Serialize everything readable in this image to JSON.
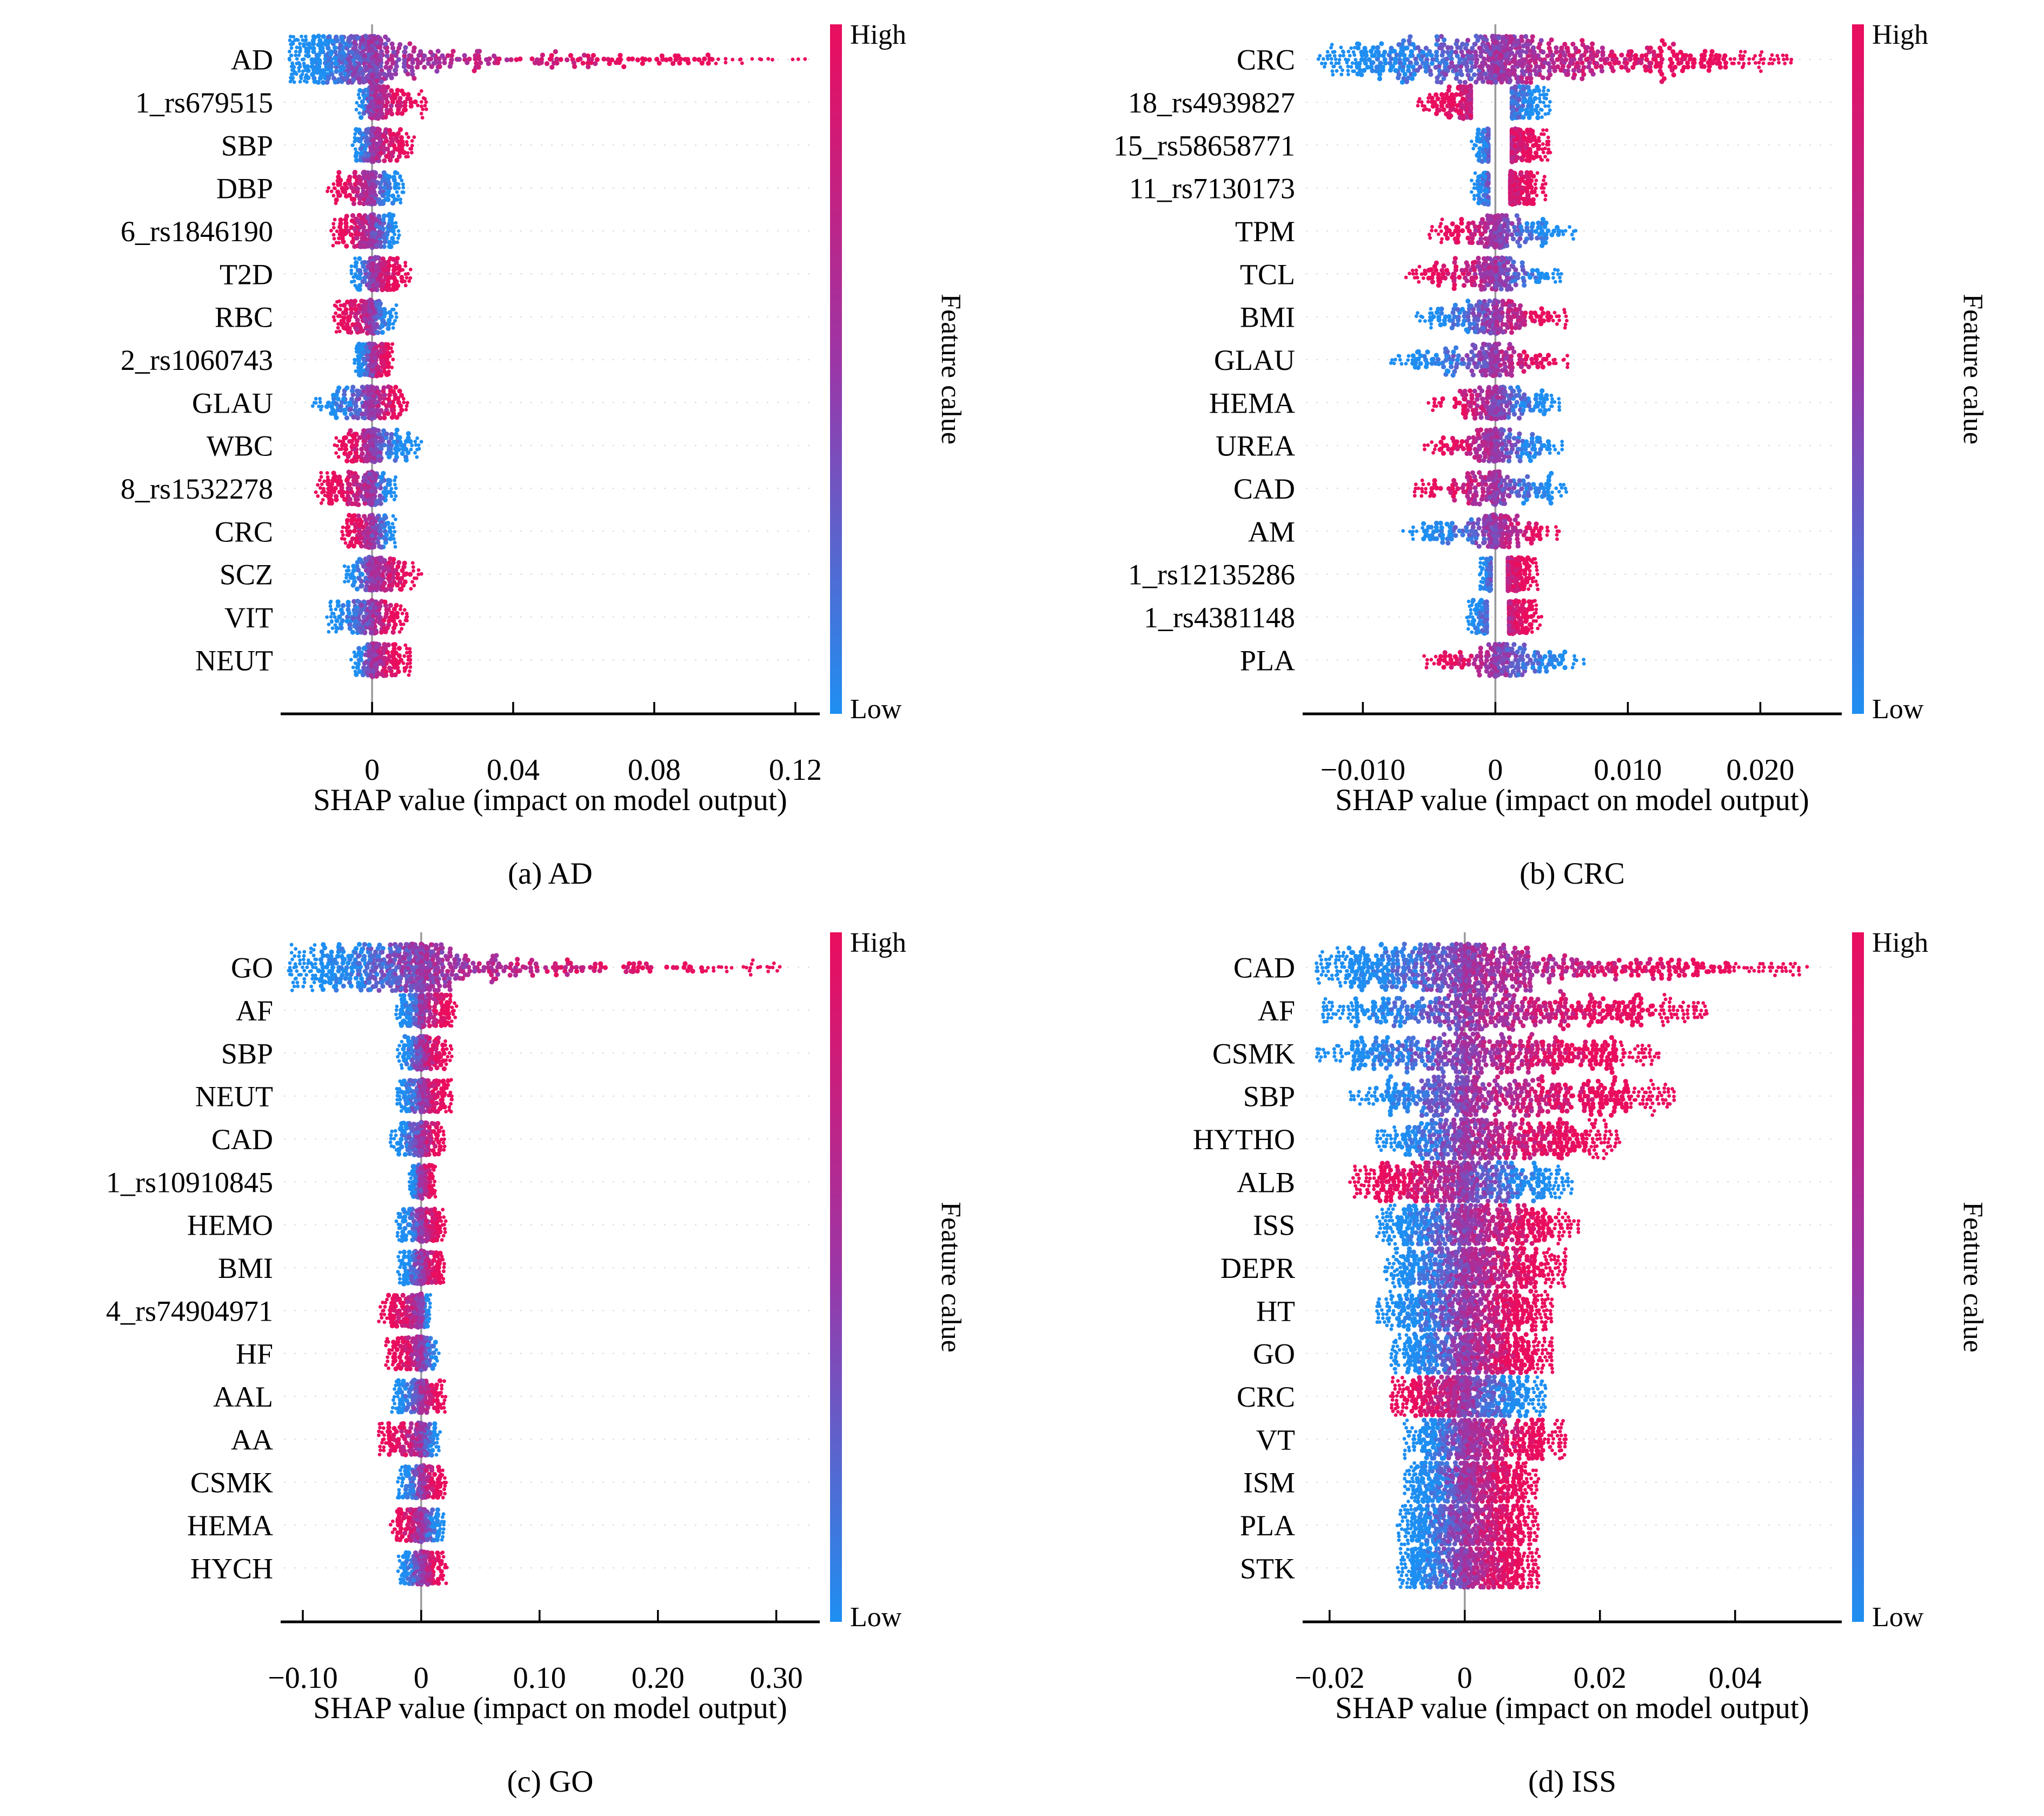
{
  "colorbar": {
    "high_label": "High",
    "low_label": "Low",
    "label": "Feature calue",
    "high_color": "#ea0d5e",
    "mid_color": "#9a37a8",
    "low_color": "#1e8ff2"
  },
  "chart_data": [
    {
      "type": "beeswarm",
      "panel_id": "a",
      "caption": "(a) AD",
      "xlabel": "SHAP value (impact on model output)",
      "xlim": [
        -0.025,
        0.126
      ],
      "xticks": [
        {
          "v": 0,
          "label": "0"
        },
        {
          "v": 0.04,
          "label": "0.04"
        },
        {
          "v": 0.08,
          "label": "0.08"
        },
        {
          "v": 0.12,
          "label": "0.12"
        }
      ],
      "defaults": {
        "n": 270,
        "k": 3.0,
        "cap": 33
      },
      "features": [
        {
          "label": "AD",
          "neg": 0.0235,
          "pos": 0.124,
          "flip": false,
          "n": 820,
          "kneg": 1.9,
          "kpos": 4.2,
          "wpos": 0.44,
          "cap": 46
        },
        {
          "label": "1_rs679515",
          "neg": 0.0045,
          "pos": 0.016,
          "flip": false,
          "kpos": 4.5
        },
        {
          "label": "SBP",
          "neg": 0.006,
          "pos": 0.012,
          "flip": false
        },
        {
          "label": "DBP",
          "neg": 0.013,
          "pos": 0.009,
          "flip": true
        },
        {
          "label": "6_rs1846190",
          "neg": 0.012,
          "pos": 0.008,
          "flip": true
        },
        {
          "label": "T2D",
          "neg": 0.006,
          "pos": 0.011,
          "flip": false
        },
        {
          "label": "RBC",
          "neg": 0.011,
          "pos": 0.007,
          "flip": true
        },
        {
          "label": "2_rs1060743",
          "neg": 0.005,
          "pos": 0.006,
          "flip": false
        },
        {
          "label": "GLAU",
          "neg": 0.017,
          "pos": 0.011,
          "flip": false,
          "kneg": 3.6
        },
        {
          "label": "WBC",
          "neg": 0.011,
          "pos": 0.014,
          "flip": true,
          "kpos": 3.6
        },
        {
          "label": "8_rs1532278",
          "neg": 0.016,
          "pos": 0.007,
          "flip": true,
          "kneg": 2.6
        },
        {
          "label": "CRC",
          "neg": 0.009,
          "pos": 0.007,
          "flip": true
        },
        {
          "label": "SCZ",
          "neg": 0.008,
          "pos": 0.014,
          "flip": false,
          "kpos": 3.6
        },
        {
          "label": "VIT",
          "neg": 0.013,
          "pos": 0.01,
          "flip": false
        },
        {
          "label": "NEUT",
          "neg": 0.006,
          "pos": 0.011,
          "flip": false
        }
      ]
    },
    {
      "type": "beeswarm",
      "panel_id": "b",
      "caption": "(b) CRC",
      "xlabel": "SHAP value (impact on model output)",
      "xlim": [
        -0.0143,
        0.0259
      ],
      "xticks": [
        {
          "v": -0.01,
          "label": "−0.010"
        },
        {
          "v": 0,
          "label": "0"
        },
        {
          "v": 0.01,
          "label": "0.010"
        },
        {
          "v": 0.02,
          "label": "0.020"
        }
      ],
      "defaults": {
        "n": 280,
        "k": 3.0,
        "cap": 33
      },
      "features": [
        {
          "label": "CRC",
          "neg": 0.0135,
          "pos": 0.0225,
          "flip": false,
          "n": 880,
          "kneg": 1.8,
          "kpos": 2.6,
          "wpos": 0.56,
          "cap": 46
        },
        {
          "label": "18_rs4939827",
          "neg": 0.0062,
          "pos": 0.0042,
          "flip": true,
          "gap": 0.3
        },
        {
          "label": "15_rs58658771",
          "neg": 0.0018,
          "pos": 0.0042,
          "flip": false,
          "gap": 0.3
        },
        {
          "label": "11_rs7130173",
          "neg": 0.0018,
          "pos": 0.0038,
          "flip": false,
          "gap": 0.3
        },
        {
          "label": "TPM",
          "neg": 0.005,
          "pos": 0.0062,
          "flip": true
        },
        {
          "label": "TCL",
          "neg": 0.0068,
          "pos": 0.0052,
          "flip": true
        },
        {
          "label": "BMI",
          "neg": 0.006,
          "pos": 0.0055,
          "flip": false
        },
        {
          "label": "GLAU",
          "neg": 0.008,
          "pos": 0.0055,
          "flip": false,
          "kneg": 3.4
        },
        {
          "label": "HEMA",
          "neg": 0.0052,
          "pos": 0.005,
          "flip": true
        },
        {
          "label": "UREA",
          "neg": 0.0055,
          "pos": 0.0052,
          "flip": true
        },
        {
          "label": "CAD",
          "neg": 0.0062,
          "pos": 0.0055,
          "flip": true
        },
        {
          "label": "AM",
          "neg": 0.007,
          "pos": 0.005,
          "flip": false
        },
        {
          "label": "1_rs12135286",
          "neg": 0.0012,
          "pos": 0.0032,
          "flip": false,
          "gap": 0.3
        },
        {
          "label": "1_rs4381148",
          "neg": 0.0022,
          "pos": 0.0035,
          "flip": false,
          "gap": 0.3
        },
        {
          "label": "PLA",
          "neg": 0.0055,
          "pos": 0.0068,
          "flip": true
        }
      ]
    },
    {
      "type": "beeswarm",
      "panel_id": "c",
      "caption": "(c) GO",
      "xlabel": "SHAP value (impact on model output)",
      "xlim": [
        -0.116,
        0.334
      ],
      "xticks": [
        {
          "v": -0.1,
          "label": "−0.10"
        },
        {
          "v": 0,
          "label": "0"
        },
        {
          "v": 0.1,
          "label": "0.10"
        },
        {
          "v": 0.2,
          "label": "0.20"
        },
        {
          "v": 0.3,
          "label": "0.30"
        }
      ],
      "defaults": {
        "n": 270,
        "k": 3.0,
        "cap": 33
      },
      "features": [
        {
          "label": "GO",
          "neg": 0.112,
          "pos": 0.305,
          "flip": false,
          "n": 820,
          "kneg": 1.9,
          "kpos": 4.2,
          "wpos": 0.45,
          "cap": 46
        },
        {
          "label": "AF",
          "neg": 0.022,
          "pos": 0.03,
          "flip": false
        },
        {
          "label": "SBP",
          "neg": 0.02,
          "pos": 0.026,
          "flip": false
        },
        {
          "label": "NEUT",
          "neg": 0.021,
          "pos": 0.026,
          "flip": false
        },
        {
          "label": "CAD",
          "neg": 0.026,
          "pos": 0.021,
          "flip": false
        },
        {
          "label": "1_rs10910845",
          "neg": 0.01,
          "pos": 0.012,
          "flip": false
        },
        {
          "label": "HEMO",
          "neg": 0.021,
          "pos": 0.021,
          "flip": false
        },
        {
          "label": "BMI",
          "neg": 0.02,
          "pos": 0.022,
          "flip": false
        },
        {
          "label": "4_rs74904971",
          "neg": 0.036,
          "pos": 0.008,
          "flip": true,
          "kneg": 3.2
        },
        {
          "label": "HF",
          "neg": 0.03,
          "pos": 0.016,
          "flip": true
        },
        {
          "label": "AAL",
          "neg": 0.025,
          "pos": 0.021,
          "flip": false
        },
        {
          "label": "AA",
          "neg": 0.036,
          "pos": 0.016,
          "flip": true,
          "kneg": 3.0
        },
        {
          "label": "CSMK",
          "neg": 0.02,
          "pos": 0.021,
          "flip": false
        },
        {
          "label": "HEMA",
          "neg": 0.026,
          "pos": 0.02,
          "flip": true
        },
        {
          "label": "HYCH",
          "neg": 0.02,
          "pos": 0.022,
          "flip": false
        }
      ]
    },
    {
      "type": "beeswarm",
      "panel_id": "d",
      "caption": "(d) ISS",
      "xlabel": "SHAP value (impact on model output)",
      "xlim": [
        -0.0235,
        0.0553
      ],
      "xticks": [
        {
          "v": -0.02,
          "label": "−0.02"
        },
        {
          "v": 0,
          "label": "0"
        },
        {
          "v": 0.02,
          "label": "0.02"
        },
        {
          "v": 0.04,
          "label": "0.04"
        }
      ],
      "defaults": {
        "n": 520,
        "k": 1.5,
        "cap": 36
      },
      "features": [
        {
          "label": "CAD",
          "neg": 0.022,
          "pos": 0.051,
          "flip": false,
          "n": 820,
          "kneg": 1.5,
          "kpos": 2.4,
          "wpos": 0.55,
          "cap": 44
        },
        {
          "label": "AF",
          "neg": 0.021,
          "pos": 0.036,
          "flip": false
        },
        {
          "label": "CSMK",
          "neg": 0.022,
          "pos": 0.029,
          "flip": false
        },
        {
          "label": "SBP",
          "neg": 0.017,
          "pos": 0.031,
          "flip": false
        },
        {
          "label": "HYTHO",
          "neg": 0.013,
          "pos": 0.023,
          "flip": false
        },
        {
          "label": "ALB",
          "neg": 0.017,
          "pos": 0.016,
          "flip": true
        },
        {
          "label": "ISS",
          "neg": 0.013,
          "pos": 0.017,
          "flip": false
        },
        {
          "label": "DEPR",
          "neg": 0.012,
          "pos": 0.015,
          "flip": false
        },
        {
          "label": "HT",
          "neg": 0.013,
          "pos": 0.013,
          "flip": false
        },
        {
          "label": "GO",
          "neg": 0.011,
          "pos": 0.013,
          "flip": false
        },
        {
          "label": "CRC",
          "neg": 0.011,
          "pos": 0.012,
          "flip": true
        },
        {
          "label": "VT",
          "neg": 0.009,
          "pos": 0.015,
          "flip": false,
          "kpos": 2.2
        },
        {
          "label": "ISM",
          "neg": 0.009,
          "pos": 0.011,
          "flip": false
        },
        {
          "label": "PLA",
          "neg": 0.01,
          "pos": 0.011,
          "flip": false
        },
        {
          "label": "STK",
          "neg": 0.01,
          "pos": 0.011,
          "flip": false
        }
      ]
    }
  ]
}
